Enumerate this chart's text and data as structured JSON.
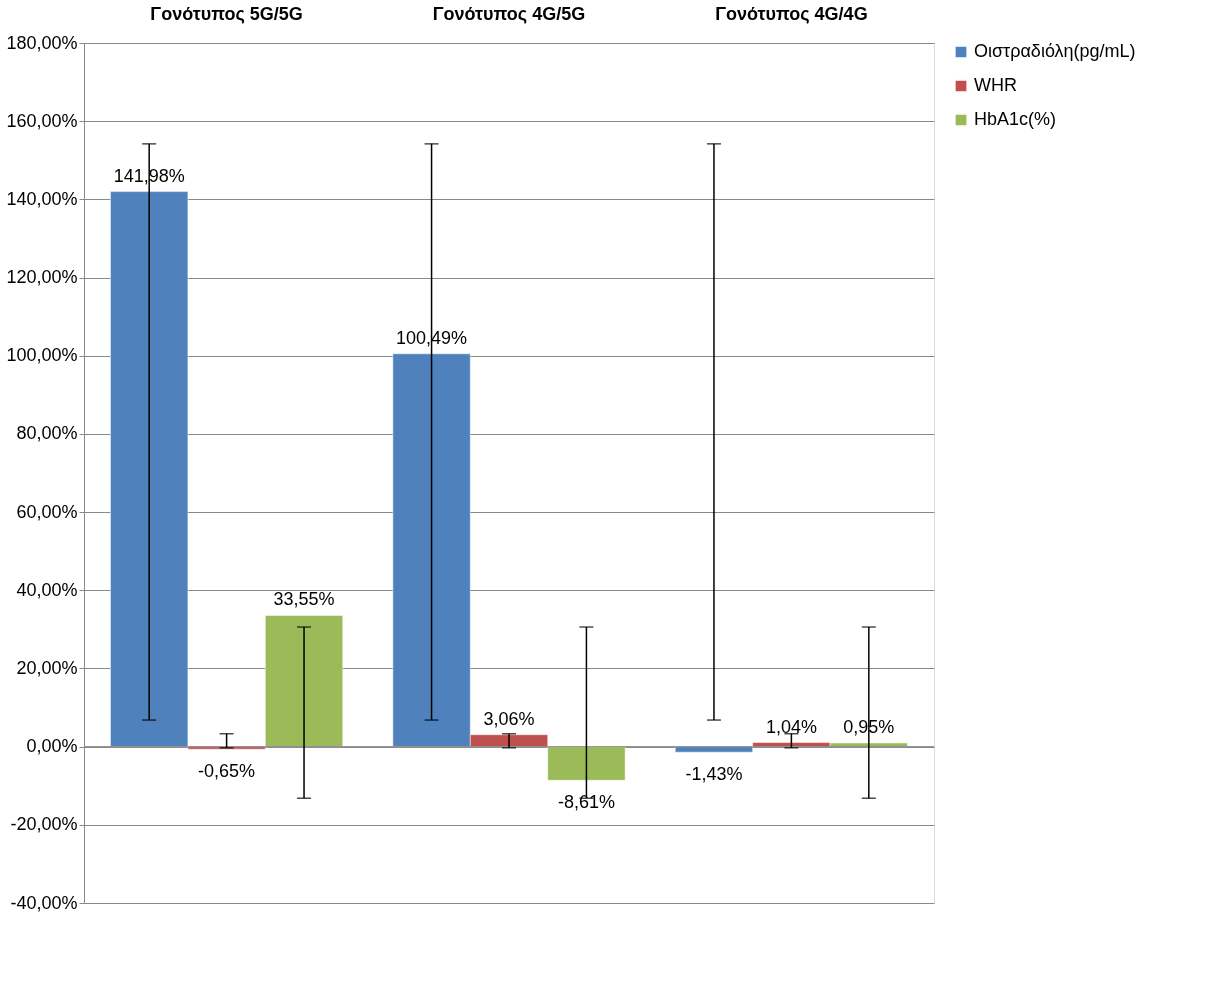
{
  "chart_data": {
    "type": "bar",
    "categories": [
      "Γονότυπος 5G/5G",
      "Γονότυπος 4G/5G",
      "Γονότυπος 4G/4G"
    ],
    "series": [
      {
        "name": "Οιστραδιόλη(pg/mL)",
        "color": "#4f81bd",
        "values": [
          141.98,
          100.49,
          -1.43
        ],
        "value_labels": [
          "141,98%",
          "100,49%",
          "-1,43%"
        ],
        "errors": [
          [
            6.8,
            154.2
          ],
          [
            6.8,
            154.2
          ],
          [
            6.8,
            154.2
          ]
        ]
      },
      {
        "name": "WHR",
        "color": "#c0504d",
        "values": [
          -0.65,
          3.06,
          1.04
        ],
        "value_labels": [
          "-0,65%",
          "3,06%",
          "1,04%"
        ],
        "errors": [
          [
            -0.3,
            3.3
          ],
          [
            -0.3,
            3.3
          ],
          [
            -0.3,
            3.3
          ]
        ]
      },
      {
        "name": "HbA1c(%)",
        "color": "#9bbb59",
        "values": [
          33.55,
          -8.61,
          0.95
        ],
        "value_labels": [
          "33,55%",
          "-8,61%",
          "0,95%"
        ],
        "errors": [
          [
            -13.2,
            30.6
          ],
          [
            -13.2,
            30.6
          ],
          [
            -13.2,
            30.6
          ]
        ]
      }
    ],
    "ylim": [
      -40,
      180
    ],
    "yticks": [
      {
        "value": -40,
        "label": "-40,00%"
      },
      {
        "value": -20,
        "label": "-20,00%"
      },
      {
        "value": 0,
        "label": "0,00%"
      },
      {
        "value": 20,
        "label": "20,00%"
      },
      {
        "value": 40,
        "label": "40,00%"
      },
      {
        "value": 60,
        "label": "60,00%"
      },
      {
        "value": 80,
        "label": "80,00%"
      },
      {
        "value": 100,
        "label": "100,00%"
      },
      {
        "value": 120,
        "label": "120,00%"
      },
      {
        "value": 140,
        "label": "140,00%"
      },
      {
        "value": 160,
        "label": "160,00%"
      },
      {
        "value": 180,
        "label": "180,00%"
      }
    ],
    "grid": "y",
    "legend": "right"
  }
}
